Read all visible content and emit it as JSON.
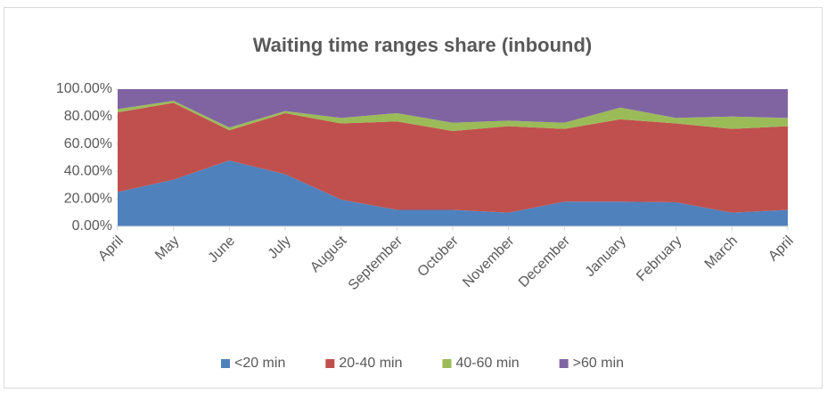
{
  "chart_data": {
    "type": "stacked_area",
    "title": "Waiting time ranges share (inbound)",
    "categories": [
      "April",
      "May",
      "June",
      "July",
      "August",
      "September",
      "October",
      "November",
      "December",
      "January",
      "February",
      "March",
      "April"
    ],
    "series": [
      {
        "name": "<20 min",
        "color": "#4f81bd",
        "values": [
          25,
          34,
          48,
          38,
          19.5,
          12,
          12,
          10,
          18,
          18,
          17.5,
          10,
          12
        ]
      },
      {
        "name": "20-40 min",
        "color": "#c0504d",
        "values": [
          58,
          56,
          22,
          44.5,
          55.5,
          64.5,
          57.5,
          63,
          53,
          60,
          57.5,
          61,
          61
        ]
      },
      {
        "name": "40-60 min",
        "color": "#9bbb59",
        "values": [
          2.5,
          1.5,
          2,
          1.5,
          4,
          6,
          6,
          4,
          4.5,
          8.5,
          4,
          9,
          6
        ]
      },
      {
        "name": ">60 min",
        "color": "#8064a2",
        "values": [
          14.5,
          8.5,
          28,
          16,
          21,
          17.5,
          24.5,
          23,
          24.5,
          13.5,
          21,
          20,
          21
        ]
      }
    ],
    "ylim": [
      0,
      100
    ],
    "yticks": [
      {
        "value": 0,
        "label": "0.00%"
      },
      {
        "value": 20,
        "label": "20.00%"
      },
      {
        "value": 40,
        "label": "40.00%"
      },
      {
        "value": 60,
        "label": "60.00%"
      },
      {
        "value": 80,
        "label": "80.00%"
      },
      {
        "value": 100,
        "label": "100.00%"
      }
    ],
    "grid": false,
    "legend": "bottom"
  }
}
